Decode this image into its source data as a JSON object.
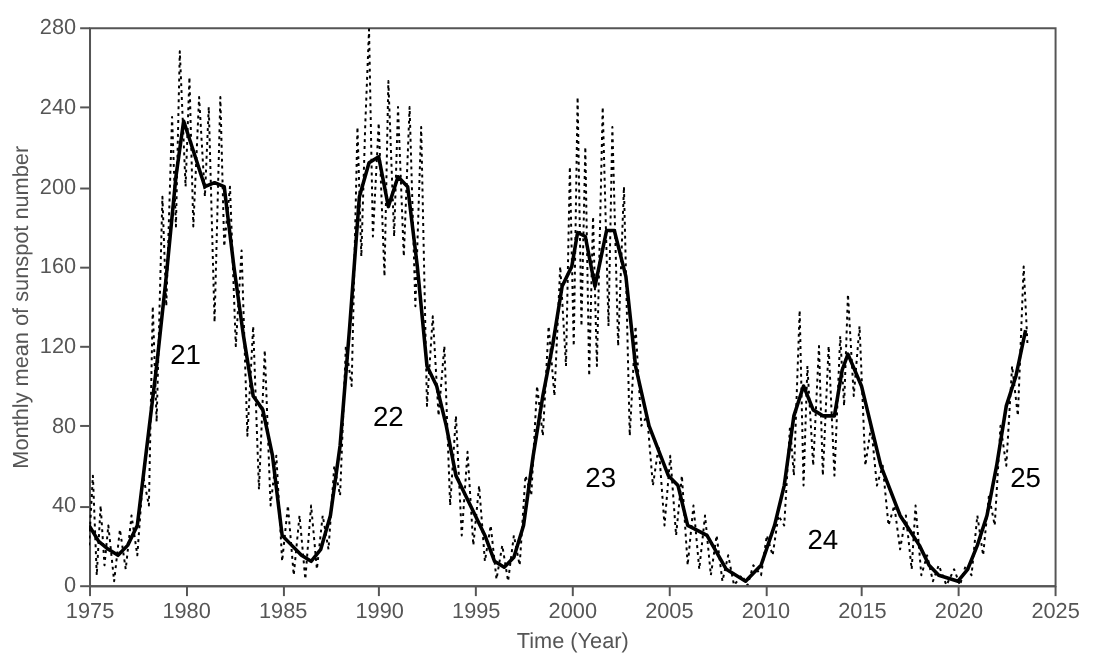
{
  "chart_data": {
    "type": "line",
    "xlabel": "Time (Year)",
    "ylabel": "Monthly mean of sunspot number",
    "xlim": [
      1975,
      2025
    ],
    "xticks": [
      1975,
      1980,
      1985,
      1990,
      1995,
      2000,
      2005,
      2010,
      2015,
      2020,
      2025
    ],
    "ylim": [
      0,
      280
    ],
    "yticks": [
      0,
      40,
      80,
      120,
      160,
      200,
      240,
      280
    ],
    "grid": false,
    "marker": "none",
    "series": [
      {
        "color": "#000000",
        "line_style": "dotted",
        "x": [
          1975.0,
          1975.2,
          1975.4,
          1975.6,
          1975.8,
          1976.0,
          1976.3,
          1976.6,
          1976.9,
          1977.2,
          1977.5,
          1977.8,
          1978.1,
          1978.3,
          1978.5,
          1978.8,
          1979.0,
          1979.3,
          1979.5,
          1979.7,
          1980.0,
          1980.2,
          1980.4,
          1980.7,
          1981.0,
          1981.2,
          1981.5,
          1981.8,
          1982.0,
          1982.3,
          1982.6,
          1982.9,
          1983.2,
          1983.5,
          1983.8,
          1984.1,
          1984.4,
          1984.7,
          1985.0,
          1985.3,
          1985.6,
          1985.9,
          1986.2,
          1986.5,
          1986.8,
          1987.1,
          1987.4,
          1987.7,
          1988.0,
          1988.3,
          1988.6,
          1988.9,
          1989.1,
          1989.3,
          1989.5,
          1989.7,
          1990.0,
          1990.3,
          1990.5,
          1990.8,
          1991.0,
          1991.3,
          1991.6,
          1991.9,
          1992.2,
          1992.5,
          1992.8,
          1993.1,
          1993.4,
          1993.7,
          1994.0,
          1994.3,
          1994.6,
          1994.9,
          1995.2,
          1995.5,
          1995.8,
          1996.1,
          1996.4,
          1996.7,
          1997.0,
          1997.3,
          1997.6,
          1997.9,
          1998.2,
          1998.5,
          1998.8,
          1999.1,
          1999.4,
          1999.7,
          1999.9,
          2000.1,
          2000.3,
          2000.5,
          2000.7,
          2000.9,
          2001.1,
          2001.3,
          2001.6,
          2001.9,
          2002.1,
          2002.4,
          2002.7,
          2003.0,
          2003.3,
          2003.6,
          2003.9,
          2004.2,
          2004.5,
          2004.8,
          2005.1,
          2005.4,
          2005.7,
          2006.0,
          2006.3,
          2006.6,
          2006.9,
          2007.2,
          2007.5,
          2007.8,
          2008.1,
          2008.4,
          2008.8,
          2009.1,
          2009.4,
          2009.8,
          2010.1,
          2010.4,
          2010.7,
          2011.0,
          2011.3,
          2011.5,
          2011.8,
          2012.0,
          2012.2,
          2012.5,
          2012.8,
          2013.0,
          2013.3,
          2013.6,
          2013.9,
          2014.1,
          2014.3,
          2014.6,
          2014.9,
          2015.2,
          2015.5,
          2015.8,
          2016.1,
          2016.4,
          2016.7,
          2017.0,
          2017.3,
          2017.6,
          2017.8,
          2018.1,
          2018.4,
          2018.7,
          2019.0,
          2019.4,
          2019.8,
          2020.1,
          2020.4,
          2020.7,
          2021.0,
          2021.3,
          2021.6,
          2021.9,
          2022.2,
          2022.5,
          2022.8,
          2023.1,
          2023.4,
          2023.6
        ],
        "values": [
          20,
          55,
          5,
          40,
          10,
          30,
          2,
          28,
          8,
          35,
          15,
          55,
          40,
          140,
          82,
          195,
          140,
          235,
          180,
          268,
          200,
          255,
          180,
          245,
          195,
          240,
          132,
          245,
          170,
          200,
          120,
          168,
          75,
          130,
          48,
          118,
          40,
          65,
          12,
          40,
          5,
          35,
          3,
          40,
          8,
          35,
          18,
          60,
          45,
          120,
          100,
          230,
          165,
          230,
          279,
          175,
          232,
          155,
          253,
          175,
          240,
          165,
          240,
          140,
          230,
          90,
          135,
          85,
          120,
          40,
          85,
          25,
          67,
          20,
          50,
          12,
          30,
          3,
          20,
          2,
          25,
          10,
          55,
          45,
          100,
          75,
          130,
          95,
          160,
          110,
          210,
          120,
          245,
          130,
          220,
          105,
          185,
          110,
          240,
          130,
          230,
          120,
          200,
          75,
          130,
          80,
          85,
          50,
          70,
          30,
          65,
          25,
          55,
          10,
          40,
          8,
          35,
          5,
          25,
          2,
          15,
          0,
          5,
          0,
          10,
          5,
          25,
          15,
          35,
          30,
          80,
          55,
          138,
          50,
          110,
          60,
          120,
          55,
          120,
          55,
          125,
          90,
          146,
          95,
          130,
          60,
          80,
          50,
          60,
          30,
          40,
          18,
          35,
          8,
          40,
          5,
          15,
          2,
          10,
          0,
          8,
          0,
          10,
          5,
          35,
          15,
          45,
          30,
          80,
          60,
          110,
          85,
          160,
          120
        ]
      },
      {
        "color": "#000000",
        "line_style": "solid",
        "x": [
          1975.0,
          1975.5,
          1976.0,
          1976.5,
          1977.0,
          1977.5,
          1978.0,
          1978.5,
          1979.0,
          1979.5,
          1979.9,
          1980.5,
          1981.0,
          1981.5,
          1982.0,
          1982.5,
          1983.0,
          1983.5,
          1984.0,
          1984.5,
          1985.0,
          1985.5,
          1986.0,
          1986.5,
          1987.0,
          1987.5,
          1988.0,
          1988.5,
          1989.0,
          1989.5,
          1990.0,
          1990.5,
          1991.0,
          1991.5,
          1992.0,
          1992.5,
          1993.0,
          1993.5,
          1994.0,
          1994.5,
          1995.0,
          1995.5,
          1996.0,
          1996.5,
          1997.0,
          1997.5,
          1998.0,
          1998.5,
          1999.0,
          1999.5,
          2000.0,
          2000.3,
          2000.7,
          2001.2,
          2001.8,
          2002.2,
          2002.8,
          2003.3,
          2004.0,
          2005.0,
          2005.5,
          2006.0,
          2007.0,
          2008.0,
          2009.0,
          2009.8,
          2010.5,
          2011.0,
          2011.5,
          2012.0,
          2012.5,
          2013.0,
          2013.6,
          2014.0,
          2014.3,
          2015.0,
          2015.5,
          2016.0,
          2017.0,
          2018.0,
          2018.5,
          2019.0,
          2020.0,
          2020.5,
          2021.0,
          2021.5,
          2022.0,
          2022.5,
          2023.0,
          2023.5
        ],
        "values": [
          30,
          22,
          18,
          15,
          20,
          30,
          70,
          110,
          155,
          205,
          233,
          215,
          200,
          202,
          200,
          160,
          125,
          95,
          88,
          65,
          25,
          20,
          15,
          12,
          18,
          35,
          70,
          130,
          195,
          212,
          215,
          190,
          205,
          200,
          160,
          110,
          100,
          80,
          55,
          45,
          35,
          25,
          12,
          9,
          14,
          30,
          65,
          95,
          120,
          150,
          160,
          177,
          175,
          150,
          178,
          178,
          155,
          110,
          80,
          55,
          50,
          30,
          25,
          8,
          2,
          10,
          30,
          50,
          85,
          100,
          88,
          85,
          85,
          108,
          116,
          100,
          80,
          60,
          35,
          20,
          10,
          5,
          2,
          8,
          20,
          35,
          60,
          90,
          105,
          128
        ]
      }
    ],
    "annotations": [
      "21",
      "22",
      "23",
      "24",
      "25"
    ]
  }
}
